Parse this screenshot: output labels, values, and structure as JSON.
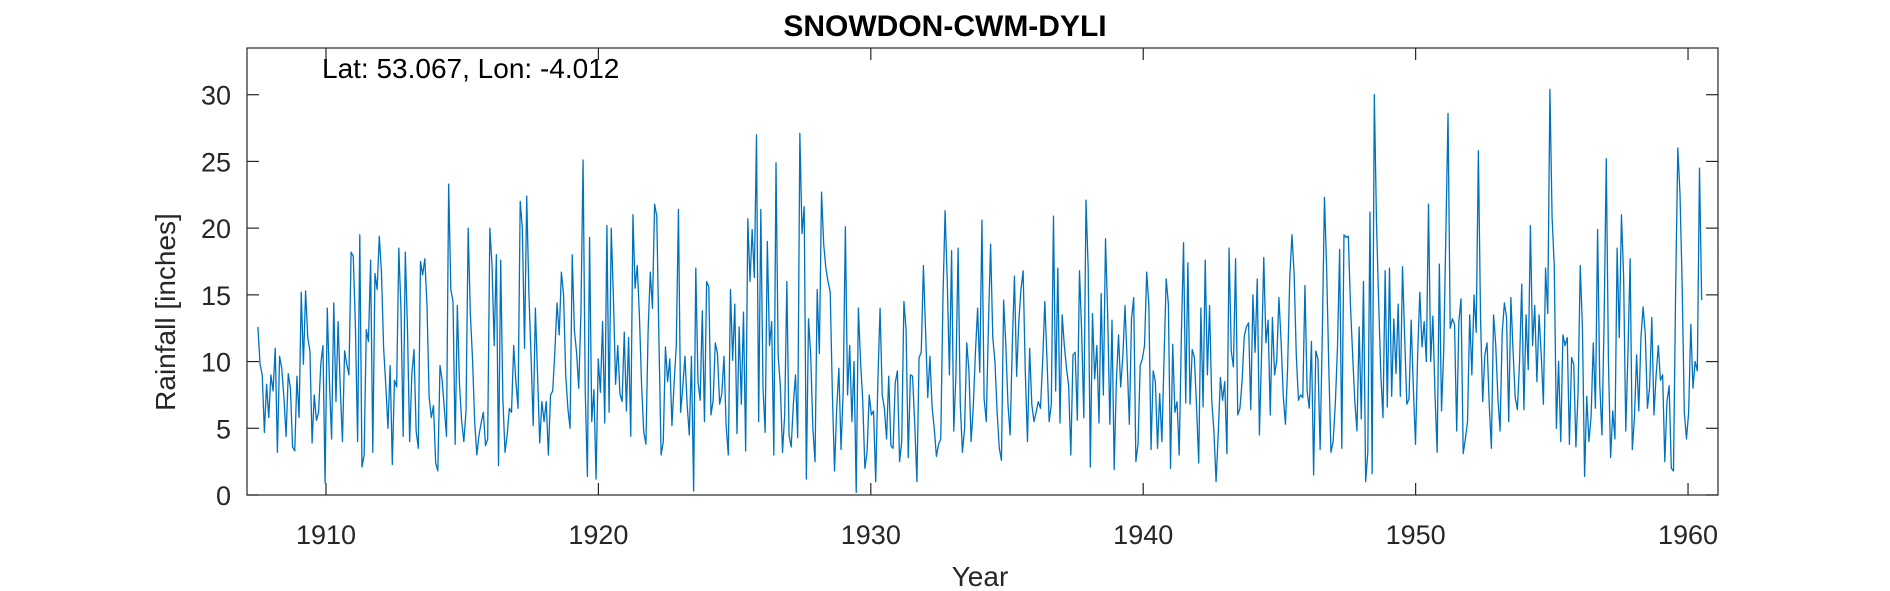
{
  "chart_data": {
    "type": "line",
    "title": "SNOWDON-CWM-DYLI",
    "annotation": "Lat: 53.067, Lon: -4.012",
    "xlabel": "Year",
    "ylabel": "Rainfall [inches]",
    "xlim": [
      1907.1,
      1961.1
    ],
    "ylim": [
      0,
      33.5
    ],
    "x_ticks": [
      1910,
      1920,
      1930,
      1940,
      1950,
      1960
    ],
    "x_tick_labels": [
      "1910",
      "1920",
      "1930",
      "1940",
      "1950",
      "1960"
    ],
    "y_ticks": [
      0,
      5,
      10,
      15,
      20,
      25,
      30
    ],
    "y_tick_labels": [
      "0",
      "5",
      "10",
      "15",
      "20",
      "25",
      "30"
    ],
    "grid": false,
    "line_color": "#0072BD",
    "x_start_year": 1907.5,
    "x_end_year": 1960.5,
    "series": [
      {
        "values": [
          12.6,
          9.8,
          9.0,
          4.7,
          8.3,
          5.8,
          9.0,
          7.8,
          11.0,
          3.2,
          10.4,
          9.5,
          7.3,
          4.4,
          9.1,
          8.0,
          3.6,
          3.3,
          8.9,
          5.8,
          15.2,
          9.8,
          15.3,
          11.8,
          10.8,
          3.9,
          7.5,
          5.6,
          6.2,
          9.8,
          11.2,
          0.9,
          14.0,
          8.5,
          4.2,
          14.4,
          7.0,
          13.0,
          8.0,
          4.0,
          10.8,
          9.8,
          9.0,
          18.2,
          17.9,
          12.5,
          4.0,
          19.5,
          2.1,
          3.0,
          12.4,
          11.5,
          17.6,
          3.2,
          16.6,
          15.4,
          19.4,
          16.7,
          11.0,
          8.2,
          5.0,
          9.7,
          2.3,
          8.6,
          8.1,
          18.5,
          13.9,
          4.4,
          18.2,
          12.5,
          4.0,
          9.0,
          10.9,
          4.8,
          3.5,
          17.5,
          16.5,
          17.7,
          14.2,
          7.3,
          5.8,
          6.7,
          2.4,
          1.8,
          9.7,
          8.6,
          6.5,
          4.4,
          23.3,
          15.4,
          14.5,
          3.8,
          14.2,
          8.3,
          5.5,
          4.0,
          6.3,
          20.0,
          13.6,
          10.2,
          5.5,
          3.0,
          4.5,
          5.4,
          6.2,
          3.7,
          4.2,
          20.0,
          17.2,
          11.2,
          18.0,
          2.2,
          17.6,
          7.2,
          3.2,
          4.5,
          6.5,
          6.2,
          11.2,
          8.5,
          6.5,
          22.0,
          20.0,
          11.0,
          22.4,
          15.2,
          10.4,
          5.2,
          14.0,
          9.0,
          3.9,
          7.0,
          5.5,
          7.0,
          3.0,
          7.5,
          7.8,
          10.8,
          14.4,
          12.0,
          16.7,
          15.0,
          9.0,
          6.5,
          5.0,
          18.0,
          12.3,
          10.7,
          8.0,
          13.6,
          25.1,
          7.8,
          1.4,
          19.3,
          5.5,
          7.9,
          1.2,
          10.2,
          7.7,
          13.0,
          5.4,
          20.2,
          6.2,
          20.0,
          14.8,
          8.3,
          11.2,
          7.6,
          7.0,
          12.2,
          6.3,
          11.8,
          4.4,
          21.0,
          15.5,
          17.2,
          13.4,
          8.2,
          4.7,
          3.8,
          12.3,
          16.7,
          14.0,
          21.8,
          20.9,
          11.6,
          3.0,
          4.0,
          11.1,
          8.5,
          10.2,
          5.2,
          8.4,
          11.2,
          21.4,
          6.2,
          8.1,
          10.4,
          6.8,
          4.5,
          10.4,
          0.3,
          17.0,
          8.5,
          7.1,
          13.8,
          5.5,
          16.0,
          15.6,
          6.0,
          7.1,
          11.4,
          10.6,
          6.8,
          7.6,
          10.4,
          5.2,
          3.0,
          15.4,
          10.1,
          14.3,
          4.6,
          12.6,
          6.8,
          13.7,
          3.3,
          20.7,
          16.0,
          19.9,
          16.3,
          27.0,
          5.5,
          21.4,
          8.0,
          4.7,
          19.0,
          11.2,
          13.0,
          3.0,
          24.9,
          10.4,
          8.2,
          3.2,
          6.0,
          16.0,
          4.5,
          3.6,
          6.8,
          9.0,
          4.3,
          27.1,
          19.6,
          21.6,
          1.2,
          13.2,
          10.5,
          5.0,
          2.5,
          15.4,
          10.6,
          22.7,
          18.8,
          17.0,
          16.0,
          15.2,
          7.6,
          1.8,
          6.5,
          9.5,
          3.4,
          7.8,
          20.1,
          7.5,
          11.2,
          5.5,
          10.0,
          0.2,
          14.0,
          10.0,
          7.1,
          2.0,
          3.2,
          7.5,
          6.0,
          6.3,
          1.0,
          8.6,
          14.0,
          7.5,
          6.5,
          4.2,
          8.9,
          3.7,
          3.5,
          8.4,
          9.3,
          2.5,
          4.0,
          14.5,
          12.4,
          2.8,
          9.0,
          8.9,
          5.3,
          1.0,
          10.3,
          10.7,
          17.2,
          12.3,
          7.3,
          10.4,
          6.6,
          5.0,
          2.9,
          3.8,
          4.2,
          14.6,
          21.3,
          16.0,
          9.0,
          18.3,
          4.8,
          9.0,
          18.5,
          6.8,
          3.2,
          5.0,
          11.4,
          9.3,
          4.0,
          6.6,
          10.7,
          14.0,
          9.2,
          20.6,
          7.2,
          5.5,
          12.8,
          18.8,
          11.8,
          10.0,
          6.2,
          3.5,
          2.6,
          14.6,
          11.3,
          6.8,
          4.5,
          11.2,
          16.4,
          8.9,
          13.0,
          15.4,
          16.8,
          9.2,
          4.0,
          11.0,
          6.8,
          5.5,
          6.2,
          7.0,
          6.5,
          10.0,
          14.5,
          10.2,
          5.5,
          6.8,
          20.9,
          7.8,
          17.0,
          5.4,
          13.5,
          11.2,
          9.5,
          8.2,
          3.0,
          10.5,
          10.7,
          5.6,
          16.8,
          12.2,
          5.8,
          22.1,
          17.0,
          2.1,
          13.6,
          8.7,
          11.2,
          5.4,
          15.1,
          7.5,
          19.2,
          13.5,
          5.3,
          13.1,
          1.9,
          8.5,
          12.0,
          8.1,
          10.4,
          14.2,
          9.9,
          5.3,
          13.2,
          14.8,
          2.5,
          3.8,
          9.7,
          10.2,
          11.2,
          16.7,
          14.2,
          3.4,
          9.3,
          8.5,
          3.5,
          7.6,
          4.0,
          10.2,
          16.2,
          14.3,
          2.0,
          11.3,
          6.2,
          7.0,
          3.0,
          12.0,
          18.9,
          6.9,
          17.4,
          6.8,
          10.9,
          10.3,
          6.6,
          2.4,
          14.0,
          6.6,
          17.6,
          9.0,
          14.2,
          7.1,
          4.8,
          1.0,
          4.6,
          8.8,
          7.1,
          8.5,
          3.1,
          18.5,
          10.8,
          9.6,
          17.7,
          6.0,
          6.5,
          8.5,
          11.9,
          12.6,
          12.9,
          6.4,
          15.0,
          10.7,
          16.2,
          4.5,
          10.6,
          17.8,
          11.4,
          13.1,
          6.0,
          13.3,
          9.0,
          10.1,
          14.8,
          11.5,
          7.4,
          5.3,
          9.5,
          16.3,
          19.5,
          16.6,
          10.5,
          7.1,
          7.5,
          7.3,
          15.7,
          7.8,
          6.5,
          11.5,
          1.5,
          10.8,
          10.2,
          3.4,
          12.0,
          22.3,
          17.0,
          9.6,
          3.2,
          4.0,
          6.8,
          11.0,
          18.4,
          3.5,
          19.5,
          19.3,
          19.4,
          14.2,
          10.5,
          7.0,
          4.8,
          12.6,
          5.7,
          16.0,
          1.0,
          3.2,
          21.2,
          1.6,
          30.0,
          20.5,
          14.5,
          9.0,
          5.8,
          16.8,
          6.6,
          17.0,
          7.4,
          13.2,
          9.1,
          14.3,
          7.4,
          17.1,
          11.8,
          6.8,
          7.2,
          13.1,
          8.0,
          3.8,
          10.6,
          15.2,
          11.1,
          13.0,
          10.0,
          21.8,
          10.0,
          13.4,
          7.5,
          3.2,
          17.3,
          6.3,
          10.7,
          19.5,
          28.6,
          12.5,
          13.2,
          12.8,
          4.8,
          13.0,
          14.7,
          3.1,
          4.2,
          5.5,
          13.5,
          9.0,
          15.0,
          12.2,
          25.8,
          13.2,
          7.0,
          10.5,
          11.4,
          6.8,
          3.5,
          13.5,
          11.3,
          7.3,
          4.8,
          12.2,
          14.4,
          13.3,
          5.5,
          14.8,
          10.8,
          7.3,
          6.4,
          10.0,
          15.8,
          6.4,
          13.5,
          9.4,
          20.2,
          11.2,
          14.2,
          8.5,
          13.5,
          10.5,
          6.8,
          17.0,
          13.6,
          30.4,
          20.8,
          17.2,
          5.0,
          10.0,
          4.0,
          12.0,
          11.2,
          11.8,
          3.8,
          10.3,
          9.8,
          3.6,
          7.7,
          17.2,
          12.5,
          1.4,
          7.4,
          4.0,
          5.9,
          11.4,
          6.5,
          19.9,
          8.3,
          4.5,
          13.0,
          25.2,
          10.0,
          2.8,
          6.3,
          4.2,
          18.5,
          11.8,
          21.0,
          16.4,
          4.8,
          10.6,
          17.7,
          3.4,
          5.8,
          10.5,
          6.3,
          11.8,
          14.1,
          12.0,
          6.5,
          8.1,
          13.3,
          6.0,
          9.0,
          11.2,
          8.6,
          9.0,
          2.5,
          7.0,
          8.2,
          2.0,
          1.8,
          15.4,
          26.0,
          22.6,
          15.8,
          6.2,
          4.2,
          6.2,
          12.8,
          8.0,
          10.0,
          9.3,
          24.5,
          14.6
        ]
      }
    ]
  }
}
